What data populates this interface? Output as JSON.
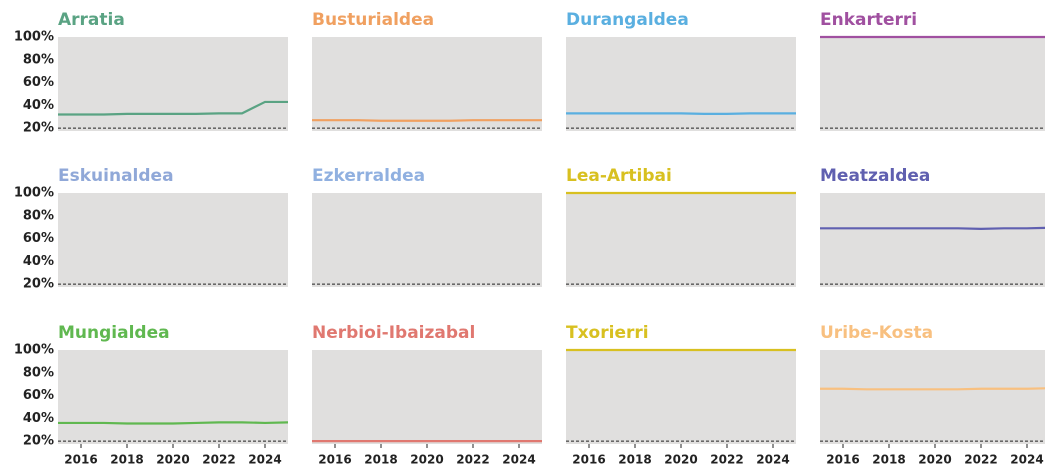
{
  "chart_data": {
    "type": "line",
    "x": [
      2015,
      2016,
      2017,
      2018,
      2019,
      2020,
      2021,
      2022,
      2023,
      2024,
      2025
    ],
    "xlim": [
      2015,
      2025
    ],
    "xticks": [
      2016,
      2018,
      2020,
      2022,
      2024
    ],
    "ylim": [
      17.5,
      100
    ],
    "yticks": [
      {
        "value": 20,
        "label": "20%"
      },
      {
        "value": 40,
        "label": "40%"
      },
      {
        "value": 60,
        "label": "60%"
      },
      {
        "value": 80,
        "label": "80%"
      },
      {
        "value": 100,
        "label": "100%"
      }
    ],
    "panels": [
      {
        "title": "Arratia",
        "color": "#5aa383",
        "values": [
          32,
          32,
          32,
          32.5,
          32.5,
          32.5,
          32.5,
          33,
          33,
          43,
          43
        ]
      },
      {
        "title": "Busturialdea",
        "color": "#f0a060",
        "values": [
          27,
          27,
          27,
          26.5,
          26.5,
          26.5,
          26.5,
          27,
          27,
          27,
          27
        ]
      },
      {
        "title": "Durangaldea",
        "color": "#5aafe0",
        "values": [
          33,
          33,
          33,
          33,
          33,
          33,
          32.5,
          32.5,
          33,
          33,
          33
        ]
      },
      {
        "title": "Enkarterri",
        "color": "#a050a0",
        "values": [
          100,
          100,
          100,
          100,
          100,
          100,
          100,
          100,
          100,
          100,
          100
        ]
      },
      {
        "title": "Eskuinaldea",
        "color": "#90a8d8",
        "values": [
          null,
          null,
          null,
          null,
          null,
          null,
          null,
          null,
          null,
          null,
          null
        ]
      },
      {
        "title": "Ezkerraldea",
        "color": "#90b0e0",
        "values": [
          null,
          null,
          null,
          null,
          null,
          null,
          null,
          null,
          null,
          null,
          null
        ]
      },
      {
        "title": "Lea-Artibai",
        "color": "#d8c020",
        "values": [
          100,
          100,
          100,
          100,
          100,
          100,
          100,
          100,
          100,
          100,
          100
        ]
      },
      {
        "title": "Meatzaldea",
        "color": "#6060b0",
        "values": [
          69,
          69,
          69,
          69,
          69,
          69,
          69,
          68.5,
          69,
          69,
          69.5
        ]
      },
      {
        "title": "Mungialdea",
        "color": "#60b850",
        "values": [
          36,
          36,
          36,
          35.5,
          35.5,
          35.5,
          36,
          36.5,
          36.5,
          36,
          36.5
        ]
      },
      {
        "title": "Nerbioi-Ibaizabal",
        "color": "#e07870",
        "values": [
          20,
          20,
          20,
          20,
          20,
          20,
          20,
          20,
          20,
          20,
          20
        ]
      },
      {
        "title": "Txorierri",
        "color": "#d8c020",
        "values": [
          100,
          100,
          100,
          100,
          100,
          100,
          100,
          100,
          100,
          100,
          100
        ]
      },
      {
        "title": "Uribe-Kosta",
        "color": "#f8c080",
        "values": [
          66,
          66,
          65.5,
          65.5,
          65.5,
          65.5,
          65.5,
          66,
          66,
          66,
          66.5
        ]
      }
    ]
  }
}
